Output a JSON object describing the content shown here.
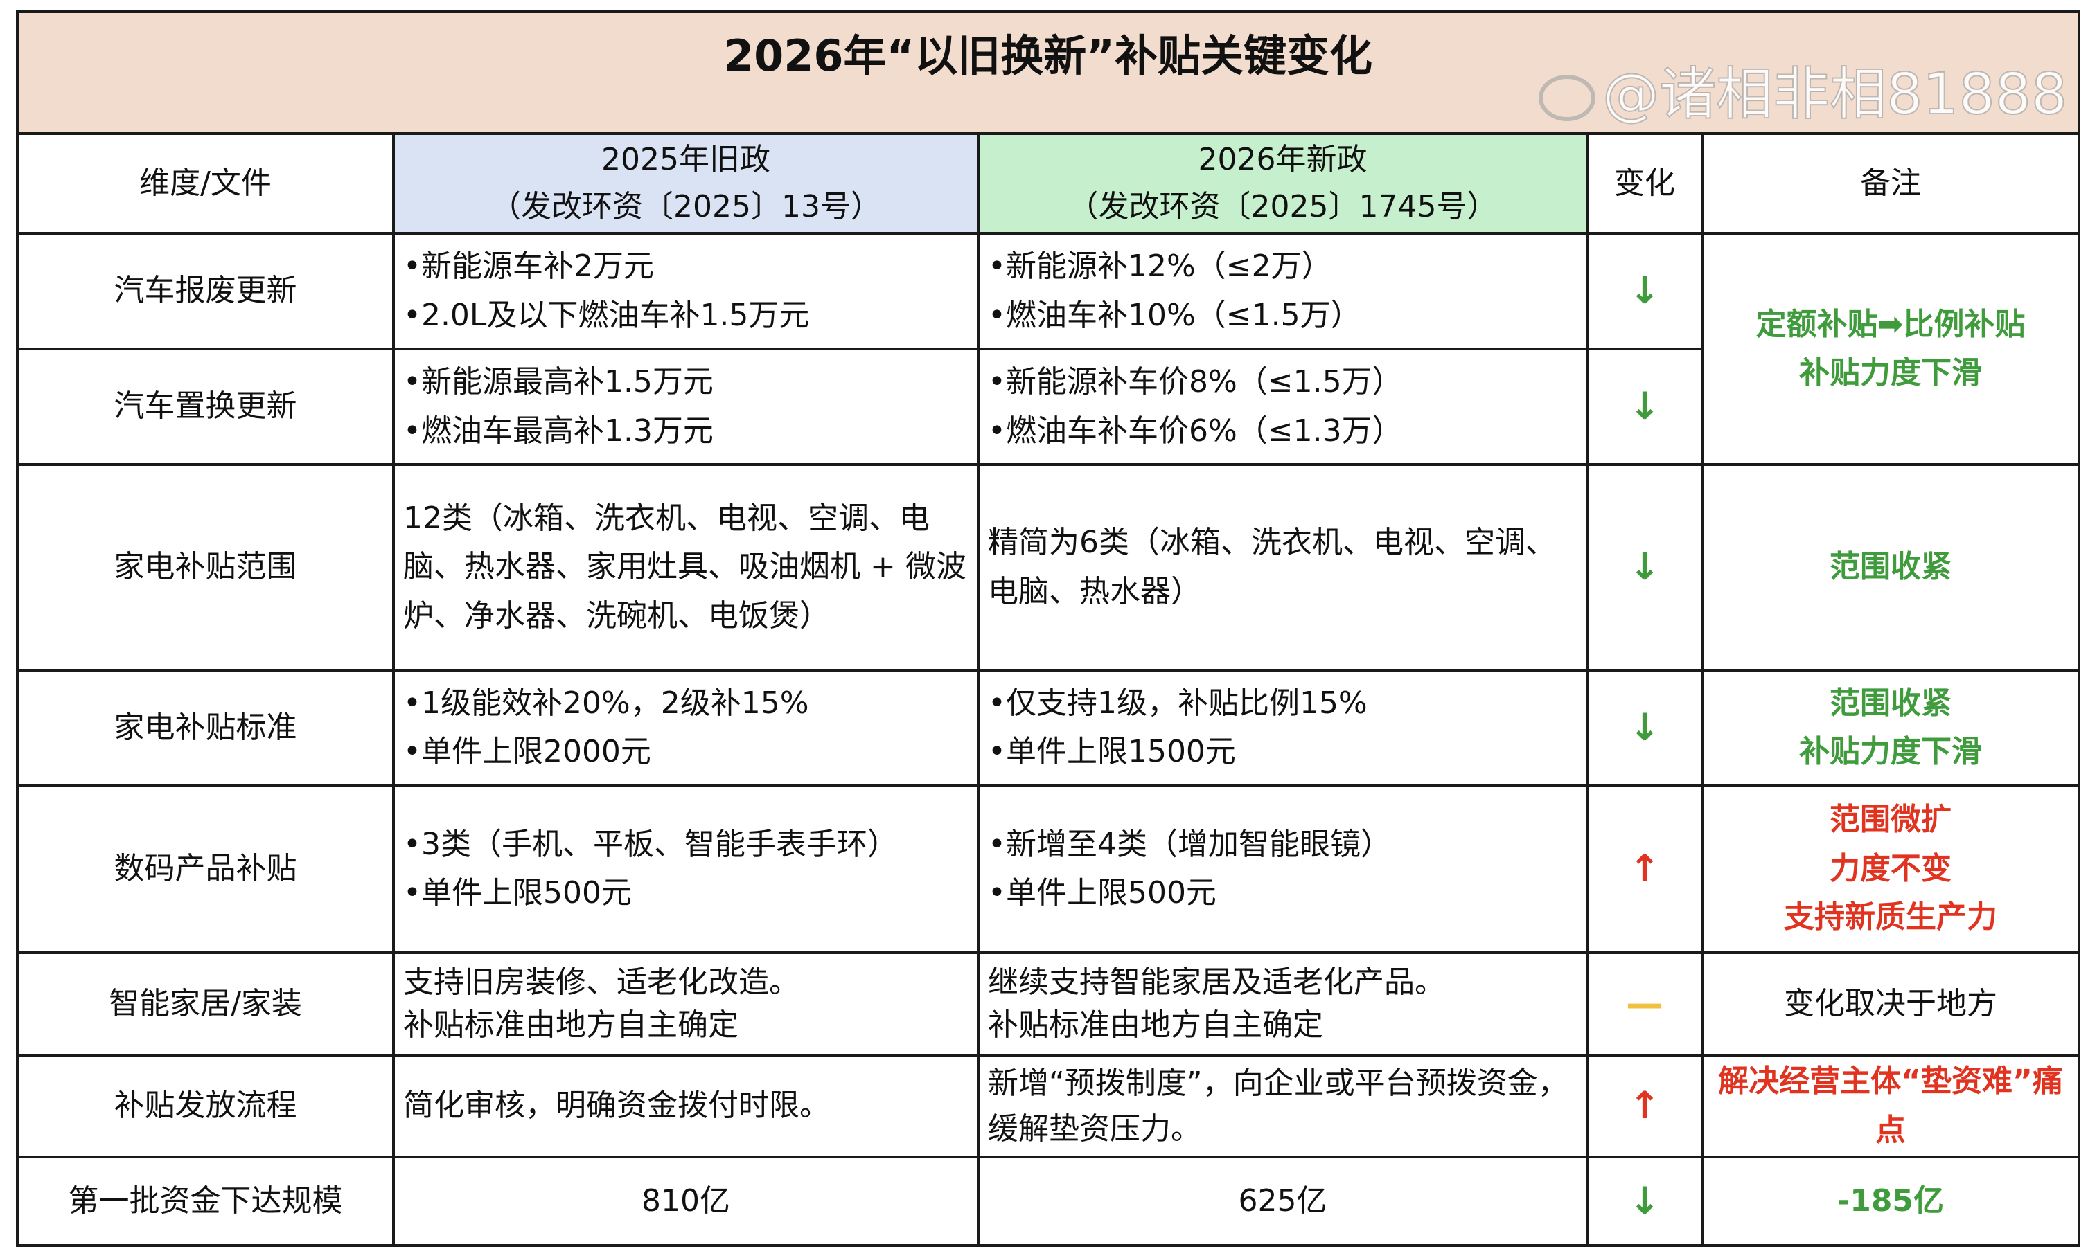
{
  "title": "2026年“以旧换新”补贴关键变化",
  "headers": {
    "dimension": "维度/文件",
    "old_line1": "2025年旧政",
    "old_line2": "（发改环资〔2025〕13号）",
    "new_line1": "2026年新政",
    "new_line2": "（发改环资〔2025〕1745号）",
    "change": "变化",
    "note": "备注"
  },
  "colors": {
    "title_bg": "#f2dccd",
    "old_bg": "#dae3f3",
    "new_bg": "#c6efce",
    "down": "#3f9b3c",
    "up": "#e03320",
    "neutral": "#f0c040"
  },
  "rows": [
    {
      "dimension": "汽车报废更新",
      "old": [
        "•新能源车补2万元",
        "•2.0L及以下燃油车补1.5万元"
      ],
      "new": [
        "•新能源补12%（≤2万）",
        "•燃油车补10%（≤1.5万）"
      ],
      "change": "↓",
      "change_type": "down",
      "note": [
        "定额补贴➡比例补贴",
        "补贴力度下滑"
      ],
      "note_color": "green"
    },
    {
      "dimension": "汽车置换更新",
      "old": [
        "•新能源最高补1.5万元",
        "•燃油车最高补1.3万元"
      ],
      "new": [
        "•新能源补车价8%（≤1.5万）",
        "•燃油车补车价6%（≤1.3万）"
      ],
      "change": "↓",
      "change_type": "down"
    },
    {
      "dimension": "家电补贴范围",
      "old": [
        "12类（冰箱、洗衣机、电视、空调、电脑、热水器、家用灶具、吸油烟机 + 微波炉、净水器、洗碗机、电饭煲）"
      ],
      "new": [
        "精简为6类（冰箱、洗衣机、电视、空调、电脑、热水器）"
      ],
      "change": "↓",
      "change_type": "down",
      "note": [
        "范围收紧"
      ],
      "note_color": "green"
    },
    {
      "dimension": "家电补贴标准",
      "old": [
        "•1级能效补20%，2级补15%",
        "•单件上限2000元"
      ],
      "new": [
        "•仅支持1级，补贴比例15%",
        "•单件上限1500元"
      ],
      "change": "↓",
      "change_type": "down",
      "note": [
        "范围收紧",
        "补贴力度下滑"
      ],
      "note_color": "green"
    },
    {
      "dimension": "数码产品补贴",
      "old": [
        "•3类（手机、平板、智能手表手环）",
        "•单件上限500元"
      ],
      "new": [
        "•新增至4类（增加智能眼镜）",
        "•单件上限500元"
      ],
      "change": "↑",
      "change_type": "up",
      "note": [
        "范围微扩",
        "力度不变",
        "支持新质生产力"
      ],
      "note_color": "red"
    },
    {
      "dimension": "智能家居/家装",
      "old": [
        "支持旧房装修、适老化改造。",
        "补贴标准由地方自主确定"
      ],
      "new": [
        "继续支持智能家居及适老化产品。",
        "补贴标准由地方自主确定"
      ],
      "change": "—",
      "change_type": "neutral",
      "note": [
        "变化取决于地方"
      ],
      "note_color": "black"
    },
    {
      "dimension": "补贴发放流程",
      "old": [
        "简化审核，明确资金拨付时限。"
      ],
      "new": [
        "新增“预拨制度”，向企业或平台预拨资金，缓解垫资压力。"
      ],
      "change": "↑",
      "change_type": "up",
      "note": [
        "解决经营主体“垫资难”痛点"
      ],
      "note_color": "red"
    },
    {
      "dimension": "第一批资金下达规模",
      "old": [
        "810亿"
      ],
      "new": [
        "625亿"
      ],
      "change": "↓",
      "change_type": "down",
      "note": [
        "-185亿"
      ],
      "note_color": "green"
    }
  ],
  "watermark": "@诸相非相81888"
}
